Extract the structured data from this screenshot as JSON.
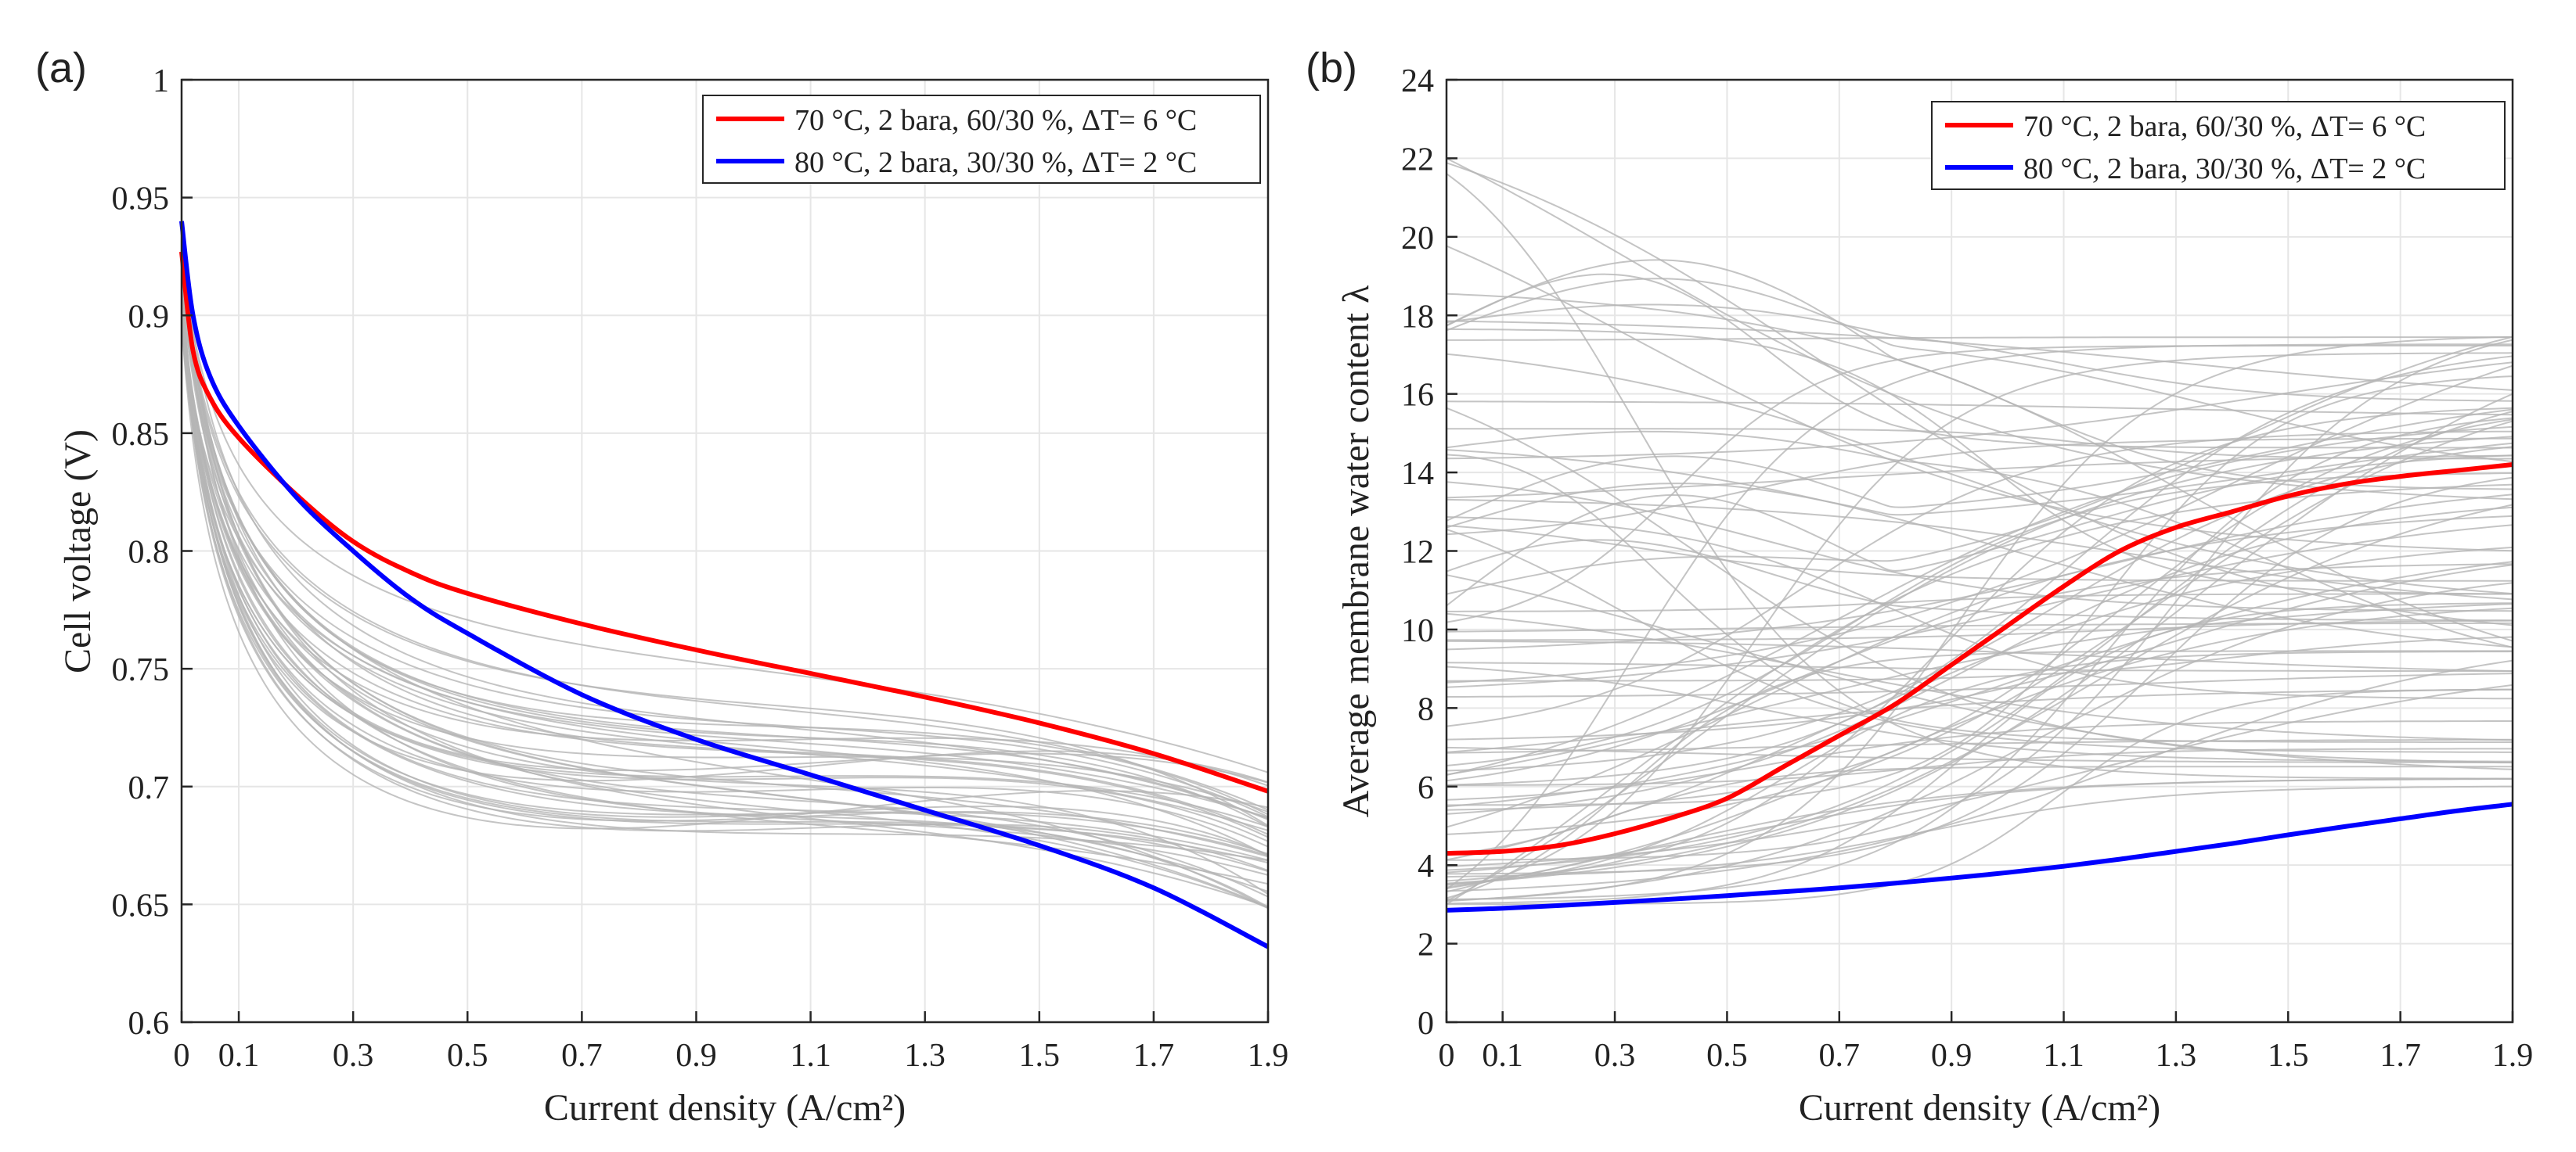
{
  "chart_data": [
    {
      "type": "line",
      "panel_label": "(a)",
      "title": "",
      "xlabel": "Current density (A/cm²)",
      "ylabel": "Cell voltage (V)",
      "xlim": [
        0,
        1.9
      ],
      "ylim": [
        0.6,
        1.0
      ],
      "x_ticks": [
        0,
        0.1,
        0.3,
        0.5,
        0.7,
        0.9,
        1.1,
        1.3,
        1.5,
        1.7,
        1.9
      ],
      "x_tick_labels": [
        "0",
        "0.1",
        "0.3",
        "0.5",
        "0.7",
        "0.9",
        "1.1",
        "1.3",
        "1.5",
        "1.7",
        "1.9"
      ],
      "y_ticks": [
        0.6,
        0.65,
        0.7,
        0.75,
        0.8,
        0.85,
        0.9,
        0.95,
        1.0
      ],
      "y_tick_labels": [
        "0.6",
        "0.65",
        "0.7",
        "0.75",
        "0.8",
        "0.85",
        "0.9",
        "0.95",
        "1"
      ],
      "grid": true,
      "legend_position": "top-right",
      "x": [
        0,
        0.02,
        0.05,
        0.1,
        0.2,
        0.3,
        0.4,
        0.5,
        0.7,
        0.9,
        1.1,
        1.3,
        1.5,
        1.7,
        1.9
      ],
      "series": [
        {
          "name": "70 °C, 2 bara, 60/30 %, ΔT= 6 °C",
          "color": "#ff0000",
          "values": [
            0.927,
            0.885,
            0.865,
            0.848,
            0.824,
            0.804,
            0.791,
            0.782,
            0.769,
            0.758,
            0.748,
            0.738,
            0.727,
            0.714,
            0.698
          ]
        },
        {
          "name": "80 °C, 2 bara, 30/30 %, ΔT= 2 °C",
          "color": "#0000ff",
          "values": [
            0.94,
            0.9,
            0.874,
            0.853,
            0.823,
            0.8,
            0.78,
            0.765,
            0.739,
            0.72,
            0.705,
            0.69,
            0.675,
            0.657,
            0.632
          ]
        }
      ],
      "background_series": {
        "color": "#b5b5b5",
        "count": 40,
        "v0_range": [
          0.895,
          0.935
        ],
        "v_end_range": [
          0.648,
          0.706
        ]
      }
    },
    {
      "type": "line",
      "panel_label": "(b)",
      "title": "",
      "xlabel": "Current density (A/cm²)",
      "ylabel": "Average membrane water content λ",
      "xlim": [
        0,
        1.9
      ],
      "ylim": [
        0,
        24
      ],
      "x_ticks": [
        0,
        0.1,
        0.3,
        0.5,
        0.7,
        0.9,
        1.1,
        1.3,
        1.5,
        1.7,
        1.9
      ],
      "x_tick_labels": [
        "0",
        "0.1",
        "0.3",
        "0.5",
        "0.7",
        "0.9",
        "1.1",
        "1.3",
        "1.5",
        "1.7",
        "1.9"
      ],
      "y_ticks": [
        0,
        2,
        4,
        6,
        8,
        10,
        12,
        14,
        16,
        18,
        20,
        22,
        24
      ],
      "y_tick_labels": [
        "0",
        "2",
        "4",
        "6",
        "8",
        "10",
        "12",
        "14",
        "16",
        "18",
        "20",
        "22",
        "24"
      ],
      "grid": true,
      "legend_position": "top-right",
      "x": [
        0,
        0.1,
        0.2,
        0.3,
        0.4,
        0.5,
        0.6,
        0.7,
        0.8,
        0.9,
        1.0,
        1.1,
        1.2,
        1.3,
        1.4,
        1.5,
        1.6,
        1.7,
        1.8,
        1.9
      ],
      "series": [
        {
          "name": "70 °C, 2 bara, 60/30 %, ΔT= 6 °C",
          "color": "#ff0000",
          "values": [
            4.3,
            4.35,
            4.5,
            4.8,
            5.2,
            5.7,
            6.5,
            7.3,
            8.1,
            9.1,
            10.1,
            11.1,
            12.0,
            12.6,
            13.0,
            13.4,
            13.7,
            13.9,
            14.05,
            14.2
          ]
        },
        {
          "name": "80 °C, 2 bara, 30/30 %, ΔT= 2 °C",
          "color": "#0000ff",
          "values": [
            2.85,
            2.9,
            2.97,
            3.05,
            3.13,
            3.22,
            3.32,
            3.42,
            3.54,
            3.67,
            3.81,
            3.97,
            4.15,
            4.35,
            4.55,
            4.77,
            4.98,
            5.18,
            5.38,
            5.55
          ]
        }
      ],
      "background_series": {
        "color": "#b5b5b5",
        "count": 90,
        "start_range": [
          3.0,
          22.0
        ],
        "end_range": [
          6.0,
          17.5
        ]
      }
    }
  ]
}
